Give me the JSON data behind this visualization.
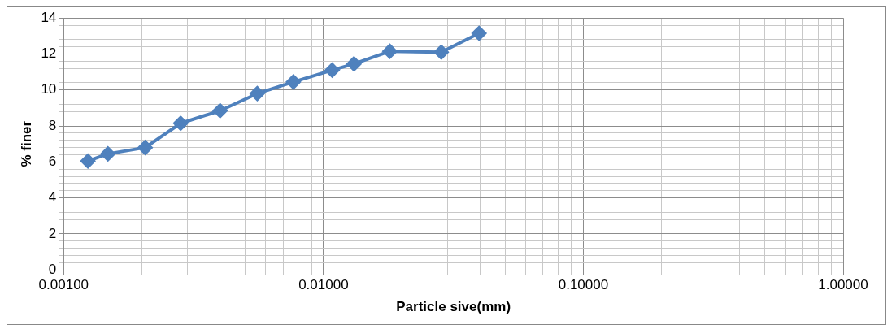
{
  "chart_data": {
    "type": "line",
    "xlabel": "Particle sive(mm)",
    "ylabel": "% finer",
    "log": "x",
    "grid": true,
    "legend": false,
    "marker": "diamond",
    "line_style": "solid",
    "xlim": [
      0.001,
      1
    ],
    "ylim": [
      0,
      14
    ],
    "xticks": [
      {
        "value": 0.001,
        "label": "0.00100"
      },
      {
        "value": 0.002,
        "label": null
      },
      {
        "value": 0.003,
        "label": null
      },
      {
        "value": 0.004,
        "label": null
      },
      {
        "value": 0.005,
        "label": null
      },
      {
        "value": 0.006,
        "label": null
      },
      {
        "value": 0.007,
        "label": null
      },
      {
        "value": 0.008,
        "label": null
      },
      {
        "value": 0.009,
        "label": null
      },
      {
        "value": 0.01,
        "label": "0.01000"
      },
      {
        "value": 0.02,
        "label": null
      },
      {
        "value": 0.03,
        "label": null
      },
      {
        "value": 0.04,
        "label": null
      },
      {
        "value": 0.05,
        "label": null
      },
      {
        "value": 0.06,
        "label": null
      },
      {
        "value": 0.07,
        "label": null
      },
      {
        "value": 0.08,
        "label": null
      },
      {
        "value": 0.09,
        "label": null
      },
      {
        "value": 0.1,
        "label": "0.10000"
      },
      {
        "value": 0.2,
        "label": null
      },
      {
        "value": 0.3,
        "label": null
      },
      {
        "value": 0.4,
        "label": null
      },
      {
        "value": 0.5,
        "label": null
      },
      {
        "value": 0.6,
        "label": null
      },
      {
        "value": 0.7,
        "label": null
      },
      {
        "value": 0.8,
        "label": null
      },
      {
        "value": 0.9,
        "label": null
      },
      {
        "value": 1,
        "label": "1.00000"
      }
    ],
    "yticks": [
      0,
      {
        "value": 0.4,
        "label": null
      },
      {
        "value": 0.8,
        "label": null
      },
      {
        "value": 1.2,
        "label": null
      },
      {
        "value": 1.6,
        "label": null
      },
      2,
      {
        "value": 2.4,
        "label": null
      },
      {
        "value": 2.8,
        "label": null
      },
      {
        "value": 3.2,
        "label": null
      },
      {
        "value": 3.6,
        "label": null
      },
      4,
      {
        "value": 4.4,
        "label": null
      },
      {
        "value": 4.8,
        "label": null
      },
      {
        "value": 5.2,
        "label": null
      },
      {
        "value": 5.6,
        "label": null
      },
      6,
      {
        "value": 6.4,
        "label": null
      },
      {
        "value": 6.8,
        "label": null
      },
      {
        "value": 7.2,
        "label": null
      },
      {
        "value": 7.6,
        "label": null
      },
      8,
      {
        "value": 8.4,
        "label": null
      },
      {
        "value": 8.8,
        "label": null
      },
      {
        "value": 9.2,
        "label": null
      },
      {
        "value": 9.6,
        "label": null
      },
      10,
      {
        "value": 10.4,
        "label": null
      },
      {
        "value": 10.8,
        "label": null
      },
      {
        "value": 11.2,
        "label": null
      },
      {
        "value": 11.6,
        "label": null
      },
      12,
      {
        "value": 12.4,
        "label": null
      },
      {
        "value": 12.8,
        "label": null
      },
      {
        "value": 13.2,
        "label": null
      },
      {
        "value": 13.6,
        "label": null
      },
      14
    ],
    "x": [
      0.00124,
      0.00148,
      0.00206,
      0.00282,
      0.004,
      0.00556,
      0.00766,
      0.0108,
      0.0131,
      0.018,
      0.0284,
      0.0397
    ],
    "series": [
      {
        "color": "#4f81bd",
        "values": [
          6.05,
          6.45,
          6.8,
          8.15,
          8.85,
          9.8,
          10.45,
          11.1,
          11.45,
          12.15,
          12.1,
          13.15
        ]
      }
    ]
  }
}
